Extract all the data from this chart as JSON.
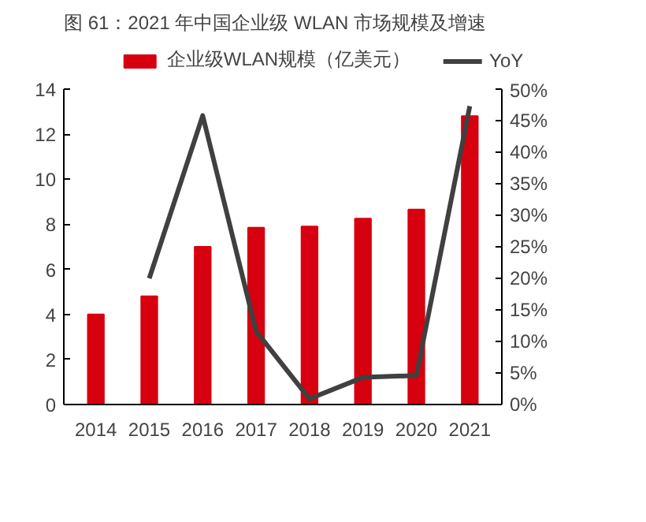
{
  "chart_data": {
    "type": "bar",
    "title": "图 61：2021 年中国企业级 WLAN 市场规模及增速",
    "categories": [
      "2014",
      "2015",
      "2016",
      "2017",
      "2018",
      "2019",
      "2020",
      "2021"
    ],
    "series": [
      {
        "name": "企业级WLAN规模（亿美元）",
        "color": "#d7000f",
        "values": [
          4.0,
          4.8,
          7.0,
          7.85,
          7.9,
          8.25,
          8.65,
          12.8
        ]
      },
      {
        "name": "YoY",
        "type": "line",
        "axis": "y2",
        "color": "#404040",
        "values": [
          null,
          20,
          45.8,
          11.6,
          0.9,
          4.3,
          4.6,
          47.3
        ]
      }
    ],
    "ylim": [
      0,
      14
    ],
    "yticks": [
      0,
      2,
      4,
      6,
      8,
      10,
      12,
      14
    ],
    "y2lim": [
      0,
      50
    ],
    "y2ticks": [
      {
        "value": 0,
        "label": "0%"
      },
      {
        "value": 5,
        "label": "5%"
      },
      {
        "value": 10,
        "label": "10%"
      },
      {
        "value": 15,
        "label": "15%"
      },
      {
        "value": 20,
        "label": "20%"
      },
      {
        "value": 25,
        "label": "25%"
      },
      {
        "value": 30,
        "label": "30%"
      },
      {
        "value": 35,
        "label": "35%"
      },
      {
        "value": 40,
        "label": "40%"
      },
      {
        "value": 45,
        "label": "45%"
      },
      {
        "value": 50,
        "label": "50%"
      }
    ],
    "grid": false,
    "legend": "top",
    "line_style": "solid",
    "marker": "none"
  }
}
